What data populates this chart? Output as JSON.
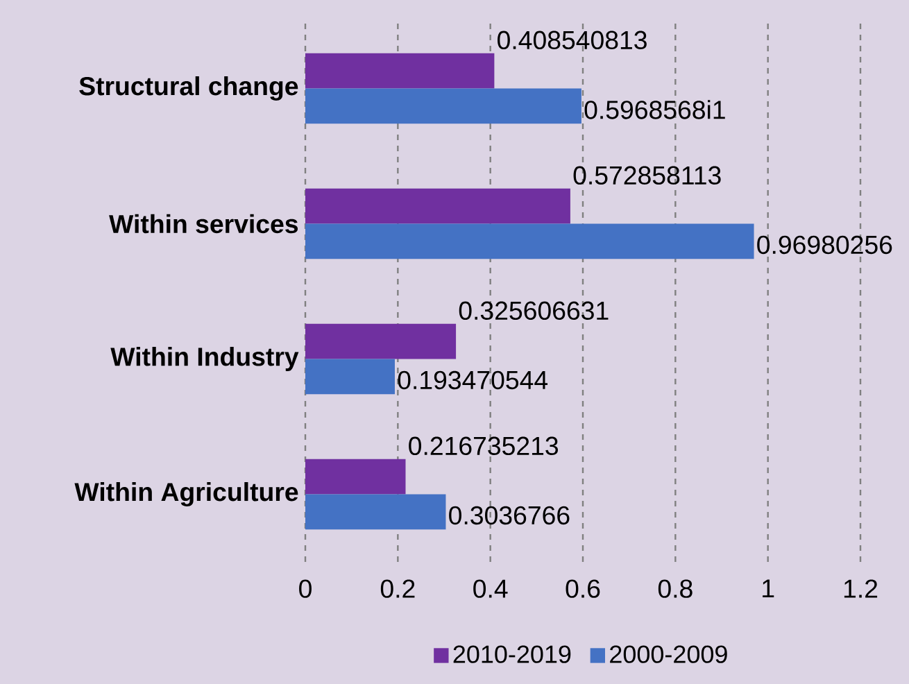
{
  "chart_data": {
    "type": "bar",
    "orientation": "horizontal",
    "categories": [
      "Structural change",
      "Within services",
      "Within Industry",
      "Within Agriculture"
    ],
    "series": [
      {
        "name": "2010-2019",
        "color": "#7030a0",
        "values": [
          0.408540813,
          0.572858113,
          0.325606631,
          0.216735213
        ],
        "value_labels": [
          "0.408540813",
          "0.572858113",
          "0.325606631",
          "0.216735213"
        ]
      },
      {
        "name": "2000-2009",
        "color": "#4472c4",
        "values": [
          0.59685681,
          0.96980256,
          0.193470544,
          0.3036766
        ],
        "value_labels": [
          "0.5968568i1",
          "0.96980256",
          "0.193470544",
          "0.3036766"
        ]
      }
    ],
    "xlim": [
      0,
      1.2
    ],
    "xticks": [
      0,
      0.2,
      0.4,
      0.6,
      0.8,
      1,
      1.2
    ],
    "grid": "x",
    "legend": "bottom"
  }
}
